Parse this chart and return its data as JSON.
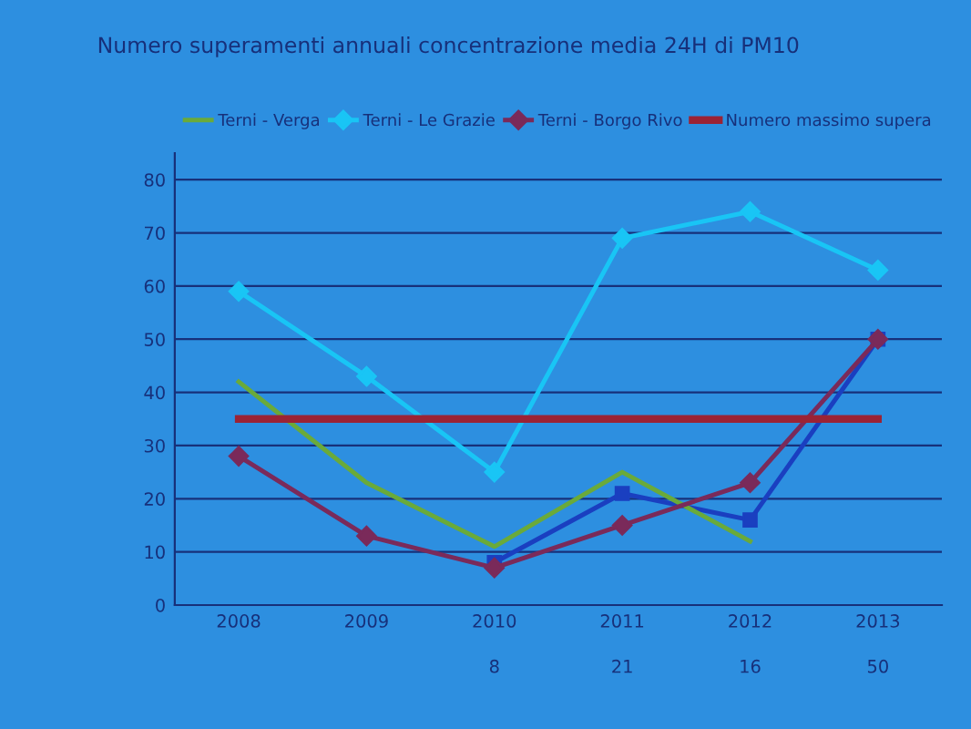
{
  "chart_data": {
    "type": "line",
    "title": "Numero superamenti annuali concentrazione media 24H di PM10",
    "categories": [
      "2008",
      "2009",
      "2010",
      "2011",
      "2012",
      "2013"
    ],
    "series": [
      {
        "color": "#1a3fc0",
        "marker": "square",
        "values": [
          null,
          null,
          8,
          21,
          16,
          50
        ],
        "value_labels": [
          null,
          null,
          "8",
          "21",
          "16",
          "50"
        ]
      },
      {
        "name": "Terni - Verga",
        "color": "#6aaa3a",
        "marker": "none",
        "values": [
          42,
          23,
          11,
          25,
          12,
          null
        ]
      },
      {
        "name": "Terni - Le Grazie",
        "color": "#19c5f5",
        "marker": "diamond",
        "values": [
          59,
          43,
          25,
          69,
          74,
          63
        ]
      },
      {
        "name": "Terni - Borgo Rivo",
        "color": "#7a2a5a",
        "marker": "diamond",
        "values": [
          28,
          13,
          7,
          15,
          23,
          50
        ]
      },
      {
        "name": "Numero massimo supera",
        "color": "#9b2335",
        "marker": "none",
        "values": [
          35,
          35,
          35,
          35,
          35,
          35
        ]
      }
    ],
    "ylim": [
      0,
      85
    ],
    "yticks": [
      0,
      10,
      20,
      30,
      40,
      50,
      60,
      70,
      80
    ],
    "grid": "y",
    "legend": "top",
    "line_style": "solid"
  }
}
